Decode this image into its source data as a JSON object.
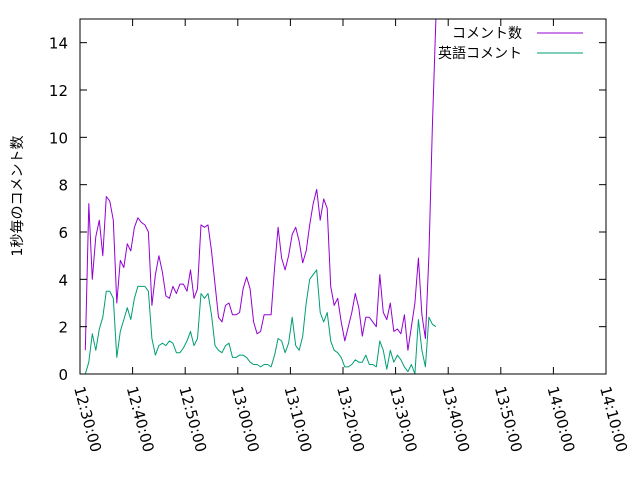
{
  "chart_data": {
    "type": "line",
    "title": "",
    "xlabel": "",
    "ylabel": "1秒毎のコメント数",
    "xlim": [
      "12:30:00",
      "14:10:00"
    ],
    "ylim": [
      0,
      15
    ],
    "xticks": [
      "12:30:00",
      "12:40:00",
      "12:50:00",
      "13:00:00",
      "13:10:00",
      "13:20:00",
      "13:30:00",
      "13:40:00",
      "13:50:00",
      "14:00:00",
      "14:10:00"
    ],
    "yticks": [
      0,
      2,
      4,
      6,
      8,
      10,
      12,
      14
    ],
    "grid": false,
    "legend_position": "top-right",
    "series": [
      {
        "name": "コメント数",
        "color": "#9400d3",
        "points": [
          [
            "12:31:00",
            1.0
          ],
          [
            "12:31:40",
            7.2
          ],
          [
            "12:32:20",
            4.0
          ],
          [
            "12:33:00",
            5.8
          ],
          [
            "12:33:40",
            6.5
          ],
          [
            "12:34:20",
            5.0
          ],
          [
            "12:35:00",
            7.5
          ],
          [
            "12:35:40",
            7.3
          ],
          [
            "12:36:20",
            6.5
          ],
          [
            "12:37:00",
            3.0
          ],
          [
            "12:37:40",
            4.8
          ],
          [
            "12:38:20",
            4.5
          ],
          [
            "12:39:00",
            5.5
          ],
          [
            "12:39:40",
            5.2
          ],
          [
            "12:40:20",
            6.2
          ],
          [
            "12:41:00",
            6.6
          ],
          [
            "12:41:40",
            6.4
          ],
          [
            "12:42:20",
            6.3
          ],
          [
            "12:43:00",
            6.0
          ],
          [
            "12:43:40",
            2.9
          ],
          [
            "12:44:20",
            4.2
          ],
          [
            "12:45:00",
            5.0
          ],
          [
            "12:45:40",
            4.3
          ],
          [
            "12:46:20",
            3.3
          ],
          [
            "12:47:00",
            3.2
          ],
          [
            "12:47:40",
            3.7
          ],
          [
            "12:48:20",
            3.4
          ],
          [
            "12:49:00",
            3.8
          ],
          [
            "12:49:40",
            3.8
          ],
          [
            "12:50:20",
            3.5
          ],
          [
            "12:51:00",
            4.4
          ],
          [
            "12:51:40",
            3.2
          ],
          [
            "12:52:20",
            3.6
          ],
          [
            "12:53:00",
            6.3
          ],
          [
            "12:53:40",
            6.2
          ],
          [
            "12:54:20",
            6.3
          ],
          [
            "12:55:00",
            5.2
          ],
          [
            "12:55:40",
            3.8
          ],
          [
            "12:56:20",
            2.4
          ],
          [
            "12:57:00",
            2.2
          ],
          [
            "12:57:40",
            2.9
          ],
          [
            "12:58:20",
            3.0
          ],
          [
            "12:59:00",
            2.5
          ],
          [
            "12:59:40",
            2.5
          ],
          [
            "13:00:20",
            2.6
          ],
          [
            "13:01:00",
            3.6
          ],
          [
            "13:01:40",
            4.1
          ],
          [
            "13:02:20",
            3.6
          ],
          [
            "13:03:00",
            2.2
          ],
          [
            "13:03:40",
            1.7
          ],
          [
            "13:04:20",
            1.8
          ],
          [
            "13:05:00",
            2.5
          ],
          [
            "13:05:40",
            2.5
          ],
          [
            "13:06:20",
            2.5
          ],
          [
            "13:07:00",
            4.5
          ],
          [
            "13:07:40",
            6.2
          ],
          [
            "13:08:20",
            4.9
          ],
          [
            "13:09:00",
            4.4
          ],
          [
            "13:09:40",
            5.0
          ],
          [
            "13:10:20",
            5.9
          ],
          [
            "13:11:00",
            6.2
          ],
          [
            "13:11:40",
            5.6
          ],
          [
            "13:12:20",
            4.7
          ],
          [
            "13:13:00",
            5.2
          ],
          [
            "13:13:40",
            6.3
          ],
          [
            "13:14:20",
            7.2
          ],
          [
            "13:15:00",
            7.8
          ],
          [
            "13:15:40",
            6.5
          ],
          [
            "13:16:20",
            7.4
          ],
          [
            "13:17:00",
            7.0
          ],
          [
            "13:17:40",
            3.7
          ],
          [
            "13:18:20",
            2.9
          ],
          [
            "13:19:00",
            3.2
          ],
          [
            "13:19:40",
            2.2
          ],
          [
            "13:20:20",
            1.4
          ],
          [
            "13:21:00",
            2.0
          ],
          [
            "13:21:40",
            2.6
          ],
          [
            "13:22:20",
            3.4
          ],
          [
            "13:23:00",
            2.8
          ],
          [
            "13:23:40",
            1.6
          ],
          [
            "13:24:20",
            2.4
          ],
          [
            "13:25:00",
            2.4
          ],
          [
            "13:25:40",
            2.2
          ],
          [
            "13:26:20",
            2.0
          ],
          [
            "13:27:00",
            4.2
          ],
          [
            "13:27:40",
            2.6
          ],
          [
            "13:28:20",
            2.3
          ],
          [
            "13:29:00",
            3.0
          ],
          [
            "13:29:40",
            1.8
          ],
          [
            "13:30:20",
            1.9
          ],
          [
            "13:31:00",
            1.7
          ],
          [
            "13:31:40",
            2.5
          ],
          [
            "13:32:20",
            1.0
          ],
          [
            "13:33:00",
            2.0
          ],
          [
            "13:33:40",
            3.0
          ],
          [
            "13:34:20",
            4.9
          ],
          [
            "13:35:00",
            2.5
          ],
          [
            "13:35:40",
            1.5
          ],
          [
            "13:36:20",
            5.0
          ],
          [
            "13:37:00",
            10.5
          ],
          [
            "13:37:40",
            15.0
          ]
        ]
      },
      {
        "name": "英語コメント",
        "color": "#009e73",
        "points": [
          [
            "12:31:00",
            0.0
          ],
          [
            "12:31:40",
            0.5
          ],
          [
            "12:32:20",
            1.7
          ],
          [
            "12:33:00",
            1.0
          ],
          [
            "12:33:40",
            1.9
          ],
          [
            "12:34:20",
            2.4
          ],
          [
            "12:35:00",
            3.5
          ],
          [
            "12:35:40",
            3.5
          ],
          [
            "12:36:20",
            3.2
          ],
          [
            "12:37:00",
            0.7
          ],
          [
            "12:37:40",
            1.8
          ],
          [
            "12:38:20",
            2.3
          ],
          [
            "12:39:00",
            2.8
          ],
          [
            "12:39:40",
            2.3
          ],
          [
            "12:40:20",
            3.2
          ],
          [
            "12:41:00",
            3.7
          ],
          [
            "12:41:40",
            3.7
          ],
          [
            "12:42:20",
            3.7
          ],
          [
            "12:43:00",
            3.5
          ],
          [
            "12:43:40",
            1.5
          ],
          [
            "12:44:20",
            0.8
          ],
          [
            "12:45:00",
            1.2
          ],
          [
            "12:45:40",
            1.3
          ],
          [
            "12:46:20",
            1.2
          ],
          [
            "12:47:00",
            1.4
          ],
          [
            "12:47:40",
            1.3
          ],
          [
            "12:48:20",
            0.9
          ],
          [
            "12:49:00",
            0.9
          ],
          [
            "12:49:40",
            1.1
          ],
          [
            "12:50:20",
            1.4
          ],
          [
            "12:51:00",
            1.8
          ],
          [
            "12:51:40",
            1.2
          ],
          [
            "12:52:20",
            1.5
          ],
          [
            "12:53:00",
            3.4
          ],
          [
            "12:53:40",
            3.2
          ],
          [
            "12:54:20",
            3.4
          ],
          [
            "12:55:00",
            2.5
          ],
          [
            "12:55:40",
            1.2
          ],
          [
            "12:56:20",
            1.0
          ],
          [
            "12:57:00",
            0.9
          ],
          [
            "12:57:40",
            1.2
          ],
          [
            "12:58:20",
            1.3
          ],
          [
            "12:59:00",
            0.7
          ],
          [
            "12:59:40",
            0.7
          ],
          [
            "13:00:20",
            0.8
          ],
          [
            "13:01:00",
            0.8
          ],
          [
            "13:01:40",
            0.7
          ],
          [
            "13:02:20",
            0.5
          ],
          [
            "13:03:00",
            0.4
          ],
          [
            "13:03:40",
            0.4
          ],
          [
            "13:04:20",
            0.3
          ],
          [
            "13:05:00",
            0.4
          ],
          [
            "13:05:40",
            0.4
          ],
          [
            "13:06:20",
            0.3
          ],
          [
            "13:07:00",
            0.8
          ],
          [
            "13:07:40",
            1.5
          ],
          [
            "13:08:20",
            1.4
          ],
          [
            "13:09:00",
            0.9
          ],
          [
            "13:09:40",
            1.3
          ],
          [
            "13:10:20",
            2.4
          ],
          [
            "13:11:00",
            1.2
          ],
          [
            "13:11:40",
            1.0
          ],
          [
            "13:12:20",
            1.6
          ],
          [
            "13:13:00",
            3.0
          ],
          [
            "13:13:40",
            4.0
          ],
          [
            "13:14:20",
            4.2
          ],
          [
            "13:15:00",
            4.4
          ],
          [
            "13:15:40",
            2.6
          ],
          [
            "13:16:20",
            2.2
          ],
          [
            "13:17:00",
            2.6
          ],
          [
            "13:17:40",
            1.4
          ],
          [
            "13:18:20",
            1.0
          ],
          [
            "13:19:00",
            0.9
          ],
          [
            "13:19:40",
            0.7
          ],
          [
            "13:20:20",
            0.3
          ],
          [
            "13:21:00",
            0.3
          ],
          [
            "13:21:40",
            0.4
          ],
          [
            "13:22:20",
            0.6
          ],
          [
            "13:23:00",
            0.5
          ],
          [
            "13:23:40",
            0.5
          ],
          [
            "13:24:20",
            0.8
          ],
          [
            "13:25:00",
            0.4
          ],
          [
            "13:25:40",
            0.4
          ],
          [
            "13:26:20",
            0.3
          ],
          [
            "13:27:00",
            1.4
          ],
          [
            "13:27:40",
            1.0
          ],
          [
            "13:28:20",
            0.2
          ],
          [
            "13:29:00",
            1.0
          ],
          [
            "13:29:40",
            0.5
          ],
          [
            "13:30:20",
            0.8
          ],
          [
            "13:31:00",
            0.6
          ],
          [
            "13:31:40",
            0.3
          ],
          [
            "13:32:20",
            0.1
          ],
          [
            "13:33:00",
            0.4
          ],
          [
            "13:33:40",
            0.0
          ],
          [
            "13:34:20",
            2.3
          ],
          [
            "13:35:00",
            1.0
          ],
          [
            "13:35:40",
            0.3
          ],
          [
            "13:36:20",
            2.4
          ],
          [
            "13:37:00",
            2.1
          ],
          [
            "13:37:40",
            2.0
          ]
        ]
      }
    ]
  }
}
